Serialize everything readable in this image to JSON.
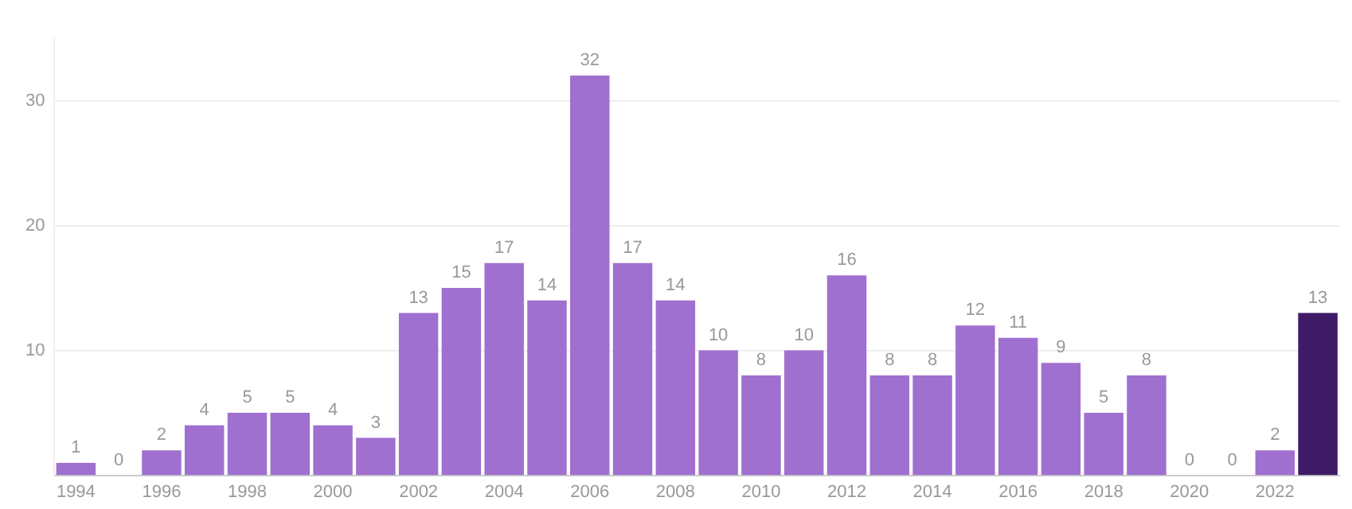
{
  "chart_data": {
    "type": "bar",
    "categories": [
      "1994",
      null,
      "1996",
      null,
      "1998",
      null,
      "2000",
      null,
      "2002",
      null,
      "2004",
      null,
      "2006",
      null,
      "2008",
      null,
      "2010",
      null,
      "2012",
      null,
      "2014",
      null,
      "2016",
      null,
      "2018",
      null,
      "2020",
      null,
      "2022",
      null
    ],
    "values": [
      1,
      0,
      2,
      4,
      5,
      5,
      4,
      3,
      13,
      15,
      17,
      14,
      32,
      17,
      14,
      10,
      8,
      10,
      16,
      8,
      8,
      12,
      11,
      9,
      5,
      8,
      0,
      0,
      2,
      13
    ],
    "colors": [
      "#a070d0",
      "#a070d0",
      "#a070d0",
      "#a070d0",
      "#a070d0",
      "#a070d0",
      "#a070d0",
      "#a070d0",
      "#a070d0",
      "#a070d0",
      "#a070d0",
      "#a070d0",
      "#a070d0",
      "#a070d0",
      "#a070d0",
      "#a070d0",
      "#a070d0",
      "#a070d0",
      "#a070d0",
      "#a070d0",
      "#a070d0",
      "#a070d0",
      "#a070d0",
      "#a070d0",
      "#a070d0",
      "#a070d0",
      "#a070d0",
      "#a070d0",
      "#a070d0",
      "#3f1a66"
    ],
    "ylim": [
      0,
      35
    ],
    "yticks": [
      10,
      20,
      30
    ],
    "grid": "y",
    "data_labels": true
  }
}
